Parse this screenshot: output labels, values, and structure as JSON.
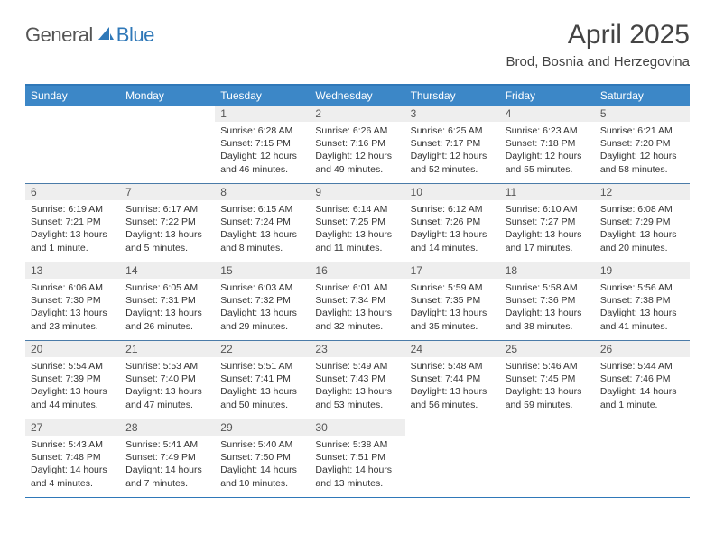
{
  "logo": {
    "text1": "General",
    "text2": "Blue"
  },
  "title": "April 2025",
  "location": "Brod, Bosnia and Herzegovina",
  "colors": {
    "header_bg": "#3c87c7",
    "header_text": "#ffffff",
    "accent": "#2f78b8",
    "daynum_bg": "#eeeeee",
    "text": "#333333"
  },
  "day_names": [
    "Sunday",
    "Monday",
    "Tuesday",
    "Wednesday",
    "Thursday",
    "Friday",
    "Saturday"
  ],
  "weeks": [
    [
      null,
      null,
      {
        "n": "1",
        "sr": "6:28 AM",
        "ss": "7:15 PM",
        "dl": "12 hours and 46 minutes."
      },
      {
        "n": "2",
        "sr": "6:26 AM",
        "ss": "7:16 PM",
        "dl": "12 hours and 49 minutes."
      },
      {
        "n": "3",
        "sr": "6:25 AM",
        "ss": "7:17 PM",
        "dl": "12 hours and 52 minutes."
      },
      {
        "n": "4",
        "sr": "6:23 AM",
        "ss": "7:18 PM",
        "dl": "12 hours and 55 minutes."
      },
      {
        "n": "5",
        "sr": "6:21 AM",
        "ss": "7:20 PM",
        "dl": "12 hours and 58 minutes."
      }
    ],
    [
      {
        "n": "6",
        "sr": "6:19 AM",
        "ss": "7:21 PM",
        "dl": "13 hours and 1 minute."
      },
      {
        "n": "7",
        "sr": "6:17 AM",
        "ss": "7:22 PM",
        "dl": "13 hours and 5 minutes."
      },
      {
        "n": "8",
        "sr": "6:15 AM",
        "ss": "7:24 PM",
        "dl": "13 hours and 8 minutes."
      },
      {
        "n": "9",
        "sr": "6:14 AM",
        "ss": "7:25 PM",
        "dl": "13 hours and 11 minutes."
      },
      {
        "n": "10",
        "sr": "6:12 AM",
        "ss": "7:26 PM",
        "dl": "13 hours and 14 minutes."
      },
      {
        "n": "11",
        "sr": "6:10 AM",
        "ss": "7:27 PM",
        "dl": "13 hours and 17 minutes."
      },
      {
        "n": "12",
        "sr": "6:08 AM",
        "ss": "7:29 PM",
        "dl": "13 hours and 20 minutes."
      }
    ],
    [
      {
        "n": "13",
        "sr": "6:06 AM",
        "ss": "7:30 PM",
        "dl": "13 hours and 23 minutes."
      },
      {
        "n": "14",
        "sr": "6:05 AM",
        "ss": "7:31 PM",
        "dl": "13 hours and 26 minutes."
      },
      {
        "n": "15",
        "sr": "6:03 AM",
        "ss": "7:32 PM",
        "dl": "13 hours and 29 minutes."
      },
      {
        "n": "16",
        "sr": "6:01 AM",
        "ss": "7:34 PM",
        "dl": "13 hours and 32 minutes."
      },
      {
        "n": "17",
        "sr": "5:59 AM",
        "ss": "7:35 PM",
        "dl": "13 hours and 35 minutes."
      },
      {
        "n": "18",
        "sr": "5:58 AM",
        "ss": "7:36 PM",
        "dl": "13 hours and 38 minutes."
      },
      {
        "n": "19",
        "sr": "5:56 AM",
        "ss": "7:38 PM",
        "dl": "13 hours and 41 minutes."
      }
    ],
    [
      {
        "n": "20",
        "sr": "5:54 AM",
        "ss": "7:39 PM",
        "dl": "13 hours and 44 minutes."
      },
      {
        "n": "21",
        "sr": "5:53 AM",
        "ss": "7:40 PM",
        "dl": "13 hours and 47 minutes."
      },
      {
        "n": "22",
        "sr": "5:51 AM",
        "ss": "7:41 PM",
        "dl": "13 hours and 50 minutes."
      },
      {
        "n": "23",
        "sr": "5:49 AM",
        "ss": "7:43 PM",
        "dl": "13 hours and 53 minutes."
      },
      {
        "n": "24",
        "sr": "5:48 AM",
        "ss": "7:44 PM",
        "dl": "13 hours and 56 minutes."
      },
      {
        "n": "25",
        "sr": "5:46 AM",
        "ss": "7:45 PM",
        "dl": "13 hours and 59 minutes."
      },
      {
        "n": "26",
        "sr": "5:44 AM",
        "ss": "7:46 PM",
        "dl": "14 hours and 1 minute."
      }
    ],
    [
      {
        "n": "27",
        "sr": "5:43 AM",
        "ss": "7:48 PM",
        "dl": "14 hours and 4 minutes."
      },
      {
        "n": "28",
        "sr": "5:41 AM",
        "ss": "7:49 PM",
        "dl": "14 hours and 7 minutes."
      },
      {
        "n": "29",
        "sr": "5:40 AM",
        "ss": "7:50 PM",
        "dl": "14 hours and 10 minutes."
      },
      {
        "n": "30",
        "sr": "5:38 AM",
        "ss": "7:51 PM",
        "dl": "14 hours and 13 minutes."
      },
      null,
      null,
      null
    ]
  ],
  "labels": {
    "sunrise": "Sunrise: ",
    "sunset": "Sunset: ",
    "daylight": "Daylight: "
  }
}
